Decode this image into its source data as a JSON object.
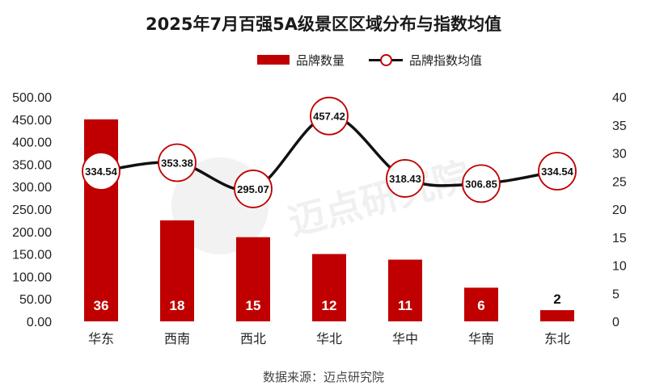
{
  "title": "2025年7月百强5A级景区区域分布与指数均值",
  "legend": {
    "bar_label": "品牌数量",
    "line_label": "品牌指数均值"
  },
  "source": "数据来源：迈点研究院",
  "watermark": "迈点研究院",
  "colors": {
    "bar": "#c00000",
    "line": "#111111",
    "marker_edge": "#c00000"
  },
  "chart_data": {
    "type": "bar+line",
    "categories": [
      "华东",
      "西南",
      "西北",
      "华北",
      "华中",
      "华南",
      "东北"
    ],
    "series": [
      {
        "name": "品牌数量",
        "type": "bar",
        "axis": "right",
        "values": [
          36,
          18,
          15,
          12,
          11,
          6,
          2
        ]
      },
      {
        "name": "品牌指数均值",
        "type": "line",
        "axis": "left",
        "values": [
          334.54,
          353.38,
          295.07,
          457.42,
          318.43,
          306.85,
          334.54
        ]
      }
    ],
    "y_left": {
      "min": 0,
      "max": 500,
      "ticks": [
        "0.00",
        "50.00",
        "100.00",
        "150.00",
        "200.00",
        "250.00",
        "300.00",
        "350.00",
        "400.00",
        "450.00",
        "500.00"
      ]
    },
    "y_right": {
      "min": 0,
      "max": 40,
      "ticks": [
        "0",
        "5",
        "10",
        "15",
        "20",
        "25",
        "30",
        "35",
        "40"
      ]
    },
    "bar_labels": [
      "36",
      "18",
      "15",
      "12",
      "11",
      "6",
      "2"
    ],
    "line_labels": [
      "334.54",
      "353.38",
      "295.07",
      "457.42",
      "318.43",
      "306.85",
      "334.54"
    ]
  }
}
